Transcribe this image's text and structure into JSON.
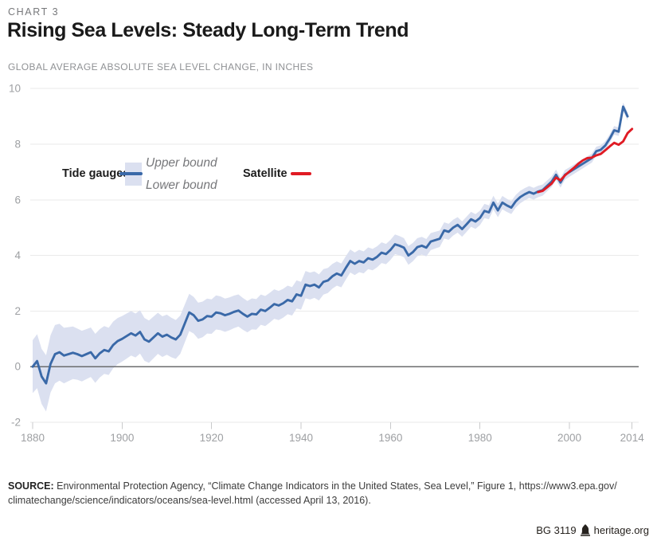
{
  "header": {
    "kicker": "CHART 3",
    "title": "Rising Sea Levels: Steady Long-Term Trend",
    "subtitle": "GLOBAL AVERAGE ABSOLUTE SEA LEVEL CHANGE, IN INCHES"
  },
  "legend": {
    "tide_label": "Tide gauges",
    "upper_label": "Upper bound",
    "lower_label": "Lower bound",
    "satellite_label": "Satellite"
  },
  "source": {
    "label": "SOURCE:",
    "line1_rest": " Environmental Protection Agency, “Climate Change Indicators in the United States, Sea Level,” Figure 1, https://www3.epa.gov/",
    "line2": "climatechange/science/indicators/oceans/sea-level.html (accessed April 13, 2016)."
  },
  "footer": {
    "id": "BG 3119",
    "site": "heritage.org",
    "logo": "heritage-bell-tower-icon"
  },
  "colors": {
    "tide_line": "#3a69a8",
    "satellite_line": "#e01b24",
    "uncertainty_band": "#dbe0f0",
    "gridline": "#eaeaea",
    "zero_line": "#6b6c6e",
    "axis_label": "#9ea0a3",
    "tick": "#c9cacb"
  },
  "chart_data": {
    "type": "line",
    "title": "Rising Sea Levels: Steady Long-Term Trend",
    "subtitle": "Global average absolute sea level change, in inches",
    "xlim": [
      1880,
      2014
    ],
    "ylim": [
      -2,
      10
    ],
    "x_ticks": [
      1880,
      1900,
      1920,
      1940,
      1960,
      1980,
      2000,
      2014
    ],
    "y_ticks": [
      -2,
      0,
      2,
      4,
      6,
      8,
      10
    ],
    "grid": true,
    "legend_position": "upper-left-inside",
    "series": [
      {
        "name": "Tide gauges",
        "color": "#3a69a8",
        "x_start": 1880,
        "x_step": 1,
        "values": [
          0.0,
          0.2,
          -0.35,
          -0.6,
          0.1,
          0.45,
          0.52,
          0.4,
          0.45,
          0.5,
          0.45,
          0.38,
          0.45,
          0.52,
          0.3,
          0.48,
          0.6,
          0.55,
          0.78,
          0.92,
          1.0,
          1.1,
          1.2,
          1.12,
          1.25,
          0.98,
          0.9,
          1.05,
          1.2,
          1.08,
          1.15,
          1.05,
          0.98,
          1.15,
          1.55,
          1.95,
          1.85,
          1.65,
          1.7,
          1.82,
          1.8,
          1.95,
          1.92,
          1.85,
          1.9,
          1.97,
          2.02,
          1.9,
          1.8,
          1.9,
          1.88,
          2.05,
          2.0,
          2.12,
          2.25,
          2.2,
          2.28,
          2.4,
          2.35,
          2.6,
          2.55,
          2.95,
          2.9,
          2.95,
          2.85,
          3.05,
          3.1,
          3.25,
          3.35,
          3.28,
          3.55,
          3.8,
          3.7,
          3.8,
          3.75,
          3.9,
          3.85,
          3.95,
          4.1,
          4.05,
          4.2,
          4.4,
          4.35,
          4.28,
          4.0,
          4.12,
          4.3,
          4.35,
          4.28,
          4.5,
          4.55,
          4.6,
          4.9,
          4.85,
          5.0,
          5.1,
          4.95,
          5.12,
          5.3,
          5.22,
          5.35,
          5.6,
          5.55,
          5.9,
          5.62,
          5.9,
          5.8,
          5.72,
          5.95,
          6.1,
          6.2,
          6.28,
          6.22,
          6.3,
          6.35,
          6.5,
          6.65,
          6.9,
          6.62,
          6.9,
          7.0,
          7.1,
          7.2,
          7.3,
          7.4,
          7.5,
          7.75,
          7.8,
          7.95,
          8.2,
          8.5,
          8.45,
          9.35,
          9.0
        ]
      },
      {
        "name": "Satellite",
        "color": "#e01b24",
        "x_start": 1993,
        "x_step": 1,
        "values": [
          6.28,
          6.32,
          6.45,
          6.58,
          6.8,
          6.7,
          6.88,
          7.02,
          7.15,
          7.3,
          7.42,
          7.5,
          7.52,
          7.6,
          7.65,
          7.78,
          7.92,
          8.05,
          7.98,
          8.1,
          8.4,
          8.55
        ]
      }
    ],
    "band": {
      "name": "Tide gauge uncertainty (Upper bound / Lower bound)",
      "applies_to": "Tide gauges",
      "color": "#dbe0f0",
      "halfwidth_points": [
        [
          1880,
          0.95
        ],
        [
          1885,
          1.05
        ],
        [
          1890,
          0.92
        ],
        [
          1900,
          0.82
        ],
        [
          1910,
          0.72
        ],
        [
          1920,
          0.62
        ],
        [
          1930,
          0.55
        ],
        [
          1940,
          0.5
        ],
        [
          1950,
          0.42
        ],
        [
          1960,
          0.36
        ],
        [
          1970,
          0.3
        ],
        [
          1980,
          0.26
        ],
        [
          1990,
          0.22
        ],
        [
          2000,
          0.17
        ],
        [
          2013,
          0.15
        ]
      ]
    }
  }
}
